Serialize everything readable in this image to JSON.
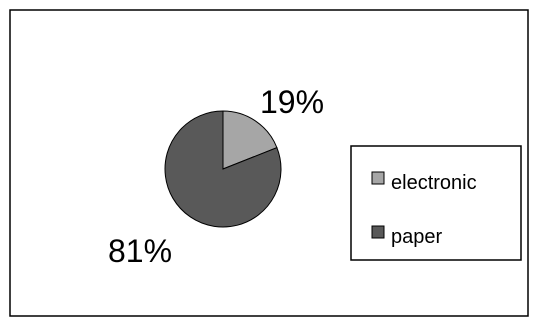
{
  "chart_data": {
    "type": "pie",
    "categories": [
      "electronic",
      "paper"
    ],
    "values": [
      19,
      81
    ],
    "data_labels": [
      "19%",
      "81%"
    ],
    "colors": {
      "electronic": "#a6a6a6",
      "paper": "#595959",
      "slice_outline": "#000000",
      "chart_border": "#000000",
      "background": "#ffffff"
    },
    "legend": {
      "placement": "right",
      "entries": [
        "electronic",
        "paper"
      ]
    },
    "title": "",
    "start_angle_deg": 0,
    "direction": "clockwise"
  }
}
